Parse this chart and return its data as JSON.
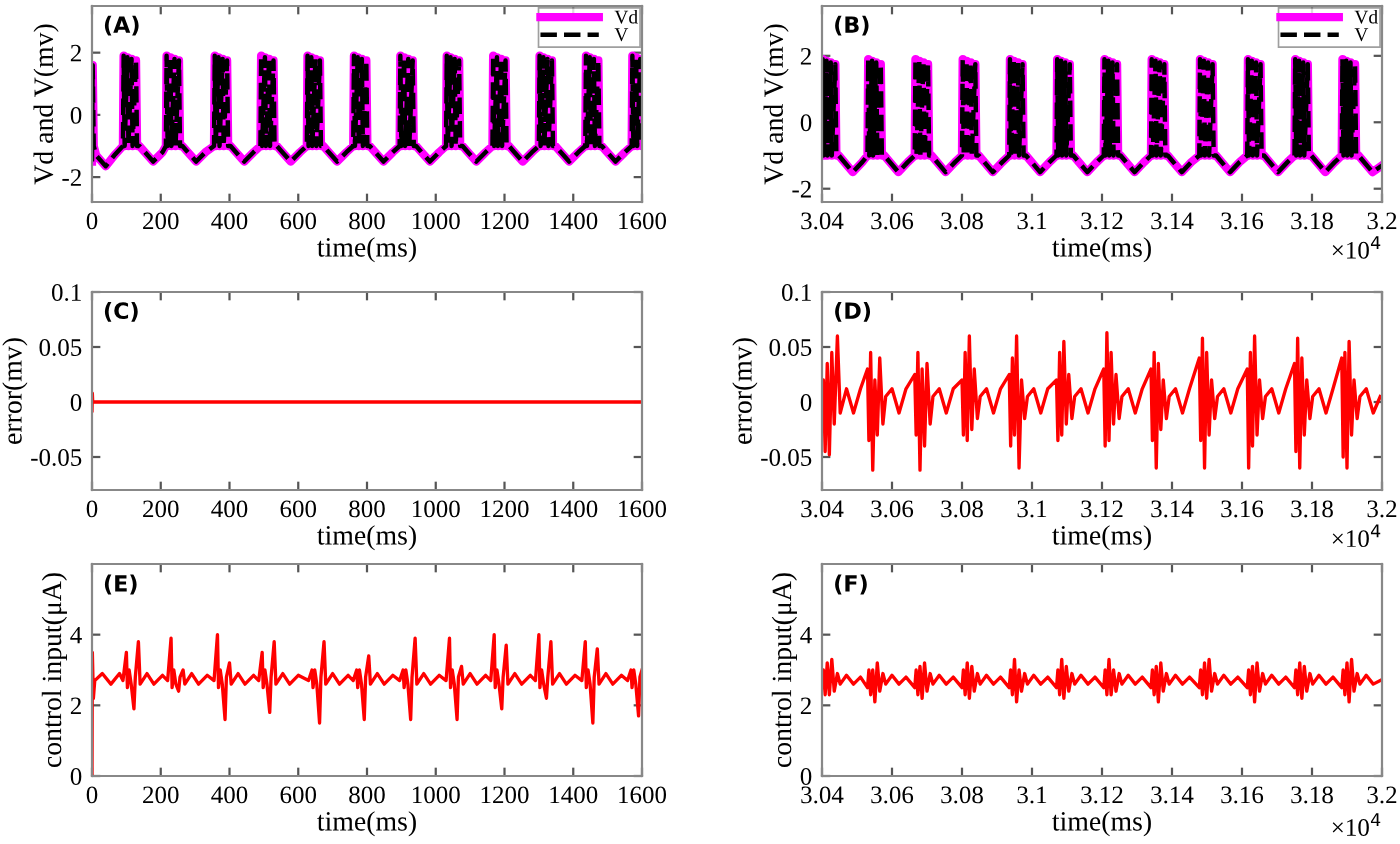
{
  "chart_data": [
    {
      "type": "line",
      "xlabel": "time(ms)",
      "ylabel": "Vd and V(mv)",
      "annotations": [
        "(A)"
      ],
      "legend": "top right",
      "xlim": [
        0,
        1600
      ],
      "xticks": [
        0,
        200,
        400,
        600,
        800,
        1000,
        1200,
        1400,
        1600
      ],
      "ylim": [
        -2.8,
        3.5
      ],
      "yticks": [
        -2,
        0,
        2
      ],
      "x": [
        0,
        2,
        5,
        12,
        40,
        65,
        90,
        92,
        95,
        103,
        106,
        115,
        118,
        128,
        131,
        138,
        150,
        178,
        205,
        215,
        217,
        220,
        228,
        231,
        240,
        243,
        253,
        256,
        263,
        275,
        303,
        330,
        355,
        357,
        360,
        368,
        371,
        380,
        383,
        393,
        396,
        403,
        415,
        443,
        470,
        490,
        492,
        495,
        503,
        506,
        515,
        518,
        528,
        531,
        538,
        550,
        578,
        605,
        625,
        627,
        630,
        638,
        641,
        650,
        653,
        663,
        666,
        673,
        685,
        713,
        740,
        760,
        762,
        765,
        773,
        776,
        785,
        788,
        798,
        801,
        808,
        820,
        848,
        875,
        895,
        897,
        900,
        908,
        911,
        920,
        923,
        933,
        936,
        943,
        955,
        983,
        1010,
        1030,
        1032,
        1035,
        1043,
        1046,
        1055,
        1058,
        1068,
        1071,
        1078,
        1090,
        1118,
        1145,
        1165,
        1167,
        1170,
        1178,
        1181,
        1190,
        1193,
        1203,
        1206,
        1213,
        1225,
        1253,
        1280,
        1300,
        1302,
        1305,
        1313,
        1316,
        1325,
        1328,
        1338,
        1341,
        1348,
        1360,
        1388,
        1415,
        1435,
        1437,
        1440,
        1448,
        1451,
        1460,
        1463,
        1473,
        1476,
        1483,
        1495,
        1523,
        1550,
        1570,
        1572,
        1575,
        1583,
        1586,
        1595,
        1598,
        1600
      ],
      "series": [
        {
          "name": "Vd",
          "color": "#ff00ff",
          "line_style": "solid",
          "values": [
            -1.5,
            1.6,
            -1.0,
            -1.3,
            -1.65,
            -1.3,
            -1.0,
            1.9,
            -1.0,
            1.85,
            -1.0,
            1.8,
            -1.0,
            1.75,
            -1.0,
            -1.0,
            -1.15,
            -1.5,
            -1.2,
            -1.0,
            1.9,
            -1.0,
            1.85,
            -1.0,
            1.8,
            -1.0,
            1.75,
            -1.0,
            -1.0,
            -1.15,
            -1.5,
            -1.2,
            -1.0,
            1.9,
            -1.0,
            1.85,
            -1.0,
            1.8,
            -1.0,
            1.75,
            -1.0,
            -1.0,
            -1.15,
            -1.5,
            -1.2,
            -1.0,
            1.9,
            -1.0,
            1.85,
            -1.0,
            1.8,
            -1.0,
            1.75,
            -1.0,
            -1.0,
            -1.15,
            -1.5,
            -1.2,
            -1.0,
            1.9,
            -1.0,
            1.85,
            -1.0,
            1.8,
            -1.0,
            1.75,
            -1.0,
            -1.0,
            -1.15,
            -1.5,
            -1.2,
            -1.0,
            1.9,
            -1.0,
            1.85,
            -1.0,
            1.8,
            -1.0,
            1.75,
            -1.0,
            -1.0,
            -1.15,
            -1.5,
            -1.2,
            -1.0,
            1.9,
            -1.0,
            1.85,
            -1.0,
            1.8,
            -1.0,
            1.75,
            -1.0,
            -1.0,
            -1.15,
            -1.5,
            -1.2,
            -1.0,
            1.9,
            -1.0,
            1.85,
            -1.0,
            1.8,
            -1.0,
            1.75,
            -1.0,
            -1.0,
            -1.15,
            -1.5,
            -1.2,
            -1.0,
            1.9,
            -1.0,
            1.85,
            -1.0,
            1.8,
            -1.0,
            1.75,
            -1.0,
            -1.0,
            -1.15,
            -1.5,
            -1.2,
            -1.0,
            1.9,
            -1.0,
            1.85,
            -1.0,
            1.8,
            -1.0,
            1.75,
            -1.0,
            -1.0,
            -1.15,
            -1.5,
            -1.2,
            -1.0,
            1.9,
            -1.0,
            1.85,
            -1.0,
            1.8,
            -1.0,
            1.75,
            -1.0,
            -1.0,
            -1.15,
            -1.5,
            -1.2,
            -1.0,
            1.9,
            -1.0,
            1.85,
            -1.0,
            1.8,
            -1.0,
            -1.0
          ]
        },
        {
          "name": "V",
          "color": "#000000",
          "line_style": "dashed",
          "values": [
            -1.5,
            1.6,
            -1.0,
            -1.3,
            -1.65,
            -1.3,
            -1.0,
            1.9,
            -1.0,
            1.85,
            -1.0,
            1.8,
            -1.0,
            1.75,
            -1.0,
            -1.0,
            -1.15,
            -1.5,
            -1.2,
            -1.0,
            1.9,
            -1.0,
            1.85,
            -1.0,
            1.8,
            -1.0,
            1.75,
            -1.0,
            -1.0,
            -1.15,
            -1.5,
            -1.2,
            -1.0,
            1.9,
            -1.0,
            1.85,
            -1.0,
            1.8,
            -1.0,
            1.75,
            -1.0,
            -1.0,
            -1.15,
            -1.5,
            -1.2,
            -1.0,
            1.9,
            -1.0,
            1.85,
            -1.0,
            1.8,
            -1.0,
            1.75,
            -1.0,
            -1.0,
            -1.15,
            -1.5,
            -1.2,
            -1.0,
            1.9,
            -1.0,
            1.85,
            -1.0,
            1.8,
            -1.0,
            1.75,
            -1.0,
            -1.0,
            -1.15,
            -1.5,
            -1.2,
            -1.0,
            1.9,
            -1.0,
            1.85,
            -1.0,
            1.8,
            -1.0,
            1.75,
            -1.0,
            -1.0,
            -1.15,
            -1.5,
            -1.2,
            -1.0,
            1.9,
            -1.0,
            1.85,
            -1.0,
            1.8,
            -1.0,
            1.75,
            -1.0,
            -1.0,
            -1.15,
            -1.5,
            -1.2,
            -1.0,
            1.9,
            -1.0,
            1.85,
            -1.0,
            1.8,
            -1.0,
            1.75,
            -1.0,
            -1.0,
            -1.15,
            -1.5,
            -1.2,
            -1.0,
            1.9,
            -1.0,
            1.85,
            -1.0,
            1.8,
            -1.0,
            1.75,
            -1.0,
            -1.0,
            -1.15,
            -1.5,
            -1.2,
            -1.0,
            1.9,
            -1.0,
            1.85,
            -1.0,
            1.8,
            -1.0,
            1.75,
            -1.0,
            -1.0,
            -1.15,
            -1.5,
            -1.2,
            -1.0,
            1.9,
            -1.0,
            1.85,
            -1.0,
            1.8,
            -1.0,
            1.75,
            -1.0,
            -1.0,
            -1.15,
            -1.5,
            -1.2,
            -1.0,
            1.9,
            -1.0,
            1.85,
            -1.0,
            1.8,
            -1.0,
            -1.0
          ]
        }
      ]
    },
    {
      "type": "line",
      "xlabel": "time(ms)",
      "ylabel": "Vd and V(mv)",
      "annotations": [
        "(B)",
        "×10$^{4}$"
      ],
      "legend": "top right",
      "xlim": [
        3.04,
        3.2
      ],
      "xticks": [
        3.04,
        3.06,
        3.08,
        3.1,
        3.12,
        3.14,
        3.16,
        3.18,
        3.2
      ],
      "ylim": [
        -2.4,
        3.5
      ],
      "yticks": [
        -2,
        0,
        2
      ],
      "x": [
        3.04,
        3.0402,
        3.0405,
        3.0413,
        3.0416,
        3.0425,
        3.0428,
        3.0438,
        3.0441,
        3.0448,
        3.046,
        3.0488,
        3.0515,
        3.053,
        3.0532,
        3.0535,
        3.0543,
        3.0546,
        3.0555,
        3.0558,
        3.0568,
        3.0571,
        3.0578,
        3.059,
        3.0618,
        3.0645,
        3.0665,
        3.0667,
        3.067,
        3.0678,
        3.0681,
        3.069,
        3.0693,
        3.0703,
        3.0706,
        3.0713,
        3.0725,
        3.0753,
        3.078,
        3.08,
        3.0802,
        3.0805,
        3.0813,
        3.0816,
        3.0825,
        3.0828,
        3.0838,
        3.0841,
        3.0848,
        3.086,
        3.0888,
        3.0915,
        3.0935,
        3.0937,
        3.094,
        3.0948,
        3.0951,
        3.096,
        3.0963,
        3.0973,
        3.0976,
        3.0983,
        3.0995,
        3.1023,
        3.105,
        3.107,
        3.1072,
        3.1075,
        3.1083,
        3.1086,
        3.1095,
        3.1098,
        3.1108,
        3.1111,
        3.1118,
        3.113,
        3.1158,
        3.1185,
        3.1205,
        3.1207,
        3.121,
        3.1218,
        3.1221,
        3.123,
        3.1233,
        3.1243,
        3.1246,
        3.1253,
        3.1265,
        3.1293,
        3.132,
        3.134,
        3.1342,
        3.1345,
        3.1353,
        3.1356,
        3.1365,
        3.1368,
        3.1378,
        3.1381,
        3.1388,
        3.14,
        3.1428,
        3.1455,
        3.1478,
        3.148,
        3.1483,
        3.1491,
        3.1494,
        3.1503,
        3.1506,
        3.1516,
        3.1519,
        3.1526,
        3.1538,
        3.1566,
        3.1593,
        3.1615,
        3.1617,
        3.162,
        3.1628,
        3.1631,
        3.164,
        3.1643,
        3.1653,
        3.1656,
        3.1663,
        3.1675,
        3.1703,
        3.173,
        3.175,
        3.1752,
        3.1755,
        3.1763,
        3.1766,
        3.1775,
        3.1778,
        3.1788,
        3.1791,
        3.1798,
        3.181,
        3.1838,
        3.1865,
        3.1885,
        3.1887,
        3.189,
        3.1898,
        3.1901,
        3.191,
        3.1913,
        3.1923,
        3.1926,
        3.1933,
        3.1945,
        3.1973,
        3.2
      ],
      "series": [
        {
          "name": "Vd",
          "color": "#ff00ff",
          "line_style": "solid",
          "values": [
            -1.0,
            1.9,
            -1.0,
            1.85,
            -1.0,
            1.8,
            -1.0,
            1.75,
            -1.0,
            -1.0,
            -1.15,
            -1.5,
            -1.2,
            -1.0,
            1.9,
            -1.0,
            1.85,
            -1.0,
            1.8,
            -1.0,
            1.75,
            -1.0,
            -1.0,
            -1.15,
            -1.5,
            -1.2,
            -1.0,
            1.9,
            -1.0,
            1.85,
            -1.0,
            1.8,
            -1.0,
            1.75,
            -1.0,
            -1.0,
            -1.15,
            -1.5,
            -1.2,
            -1.0,
            1.9,
            -1.0,
            1.85,
            -1.0,
            1.8,
            -1.0,
            1.75,
            -1.0,
            -1.0,
            -1.15,
            -1.5,
            -1.2,
            -1.0,
            1.9,
            -1.0,
            1.85,
            -1.0,
            1.8,
            -1.0,
            1.75,
            -1.0,
            -1.0,
            -1.15,
            -1.5,
            -1.2,
            -1.0,
            1.9,
            -1.0,
            1.85,
            -1.0,
            1.8,
            -1.0,
            1.75,
            -1.0,
            -1.0,
            -1.15,
            -1.5,
            -1.2,
            -1.0,
            1.9,
            -1.0,
            1.85,
            -1.0,
            1.8,
            -1.0,
            1.75,
            -1.0,
            -1.0,
            -1.15,
            -1.5,
            -1.2,
            -1.0,
            1.9,
            -1.0,
            1.85,
            -1.0,
            1.8,
            -1.0,
            1.75,
            -1.0,
            -1.0,
            -1.15,
            -1.5,
            -1.2,
            -1.0,
            1.9,
            -1.0,
            1.85,
            -1.0,
            1.8,
            -1.0,
            1.75,
            -1.0,
            -1.0,
            -1.15,
            -1.5,
            -1.2,
            -1.0,
            1.9,
            -1.0,
            1.85,
            -1.0,
            1.8,
            -1.0,
            1.75,
            -1.0,
            -1.0,
            -1.15,
            -1.5,
            -1.2,
            -1.0,
            1.9,
            -1.0,
            1.85,
            -1.0,
            1.8,
            -1.0,
            1.75,
            -1.0,
            -1.0,
            -1.15,
            -1.5,
            -1.2,
            -1.0,
            1.9,
            -1.0,
            1.85,
            -1.0,
            1.8,
            -1.0,
            1.75,
            -1.0,
            -1.0,
            -1.15,
            -1.5,
            -1.3
          ]
        },
        {
          "name": "V",
          "color": "#000000",
          "line_style": "dashed",
          "values": [
            -1.0,
            1.9,
            -1.0,
            1.85,
            -1.0,
            1.8,
            -1.0,
            1.75,
            -1.0,
            -1.0,
            -1.15,
            -1.5,
            -1.2,
            -1.0,
            1.9,
            -1.0,
            1.85,
            -1.0,
            1.8,
            -1.0,
            1.75,
            -1.0,
            -1.0,
            -1.15,
            -1.5,
            -1.2,
            -1.0,
            1.9,
            -1.0,
            1.85,
            -1.0,
            1.8,
            -1.0,
            1.75,
            -1.0,
            -1.0,
            -1.15,
            -1.5,
            -1.2,
            -1.0,
            1.9,
            -1.0,
            1.85,
            -1.0,
            1.8,
            -1.0,
            1.75,
            -1.0,
            -1.0,
            -1.15,
            -1.5,
            -1.2,
            -1.0,
            1.9,
            -1.0,
            1.85,
            -1.0,
            1.8,
            -1.0,
            1.75,
            -1.0,
            -1.0,
            -1.15,
            -1.5,
            -1.2,
            -1.0,
            1.9,
            -1.0,
            1.85,
            -1.0,
            1.8,
            -1.0,
            1.75,
            -1.0,
            -1.0,
            -1.15,
            -1.5,
            -1.2,
            -1.0,
            1.9,
            -1.0,
            1.85,
            -1.0,
            1.8,
            -1.0,
            1.75,
            -1.0,
            -1.0,
            -1.15,
            -1.5,
            -1.2,
            -1.0,
            1.9,
            -1.0,
            1.85,
            -1.0,
            1.8,
            -1.0,
            1.75,
            -1.0,
            -1.0,
            -1.15,
            -1.5,
            -1.2,
            -1.0,
            1.9,
            -1.0,
            1.85,
            -1.0,
            1.8,
            -1.0,
            1.75,
            -1.0,
            -1.0,
            -1.15,
            -1.5,
            -1.2,
            -1.0,
            1.9,
            -1.0,
            1.85,
            -1.0,
            1.8,
            -1.0,
            1.75,
            -1.0,
            -1.0,
            -1.15,
            -1.5,
            -1.2,
            -1.0,
            1.9,
            -1.0,
            1.85,
            -1.0,
            1.8,
            -1.0,
            1.75,
            -1.0,
            -1.0,
            -1.15,
            -1.5,
            -1.2,
            -1.0,
            1.9,
            -1.0,
            1.85,
            -1.0,
            1.8,
            -1.0,
            1.75,
            -1.0,
            -1.0,
            -1.15,
            -1.5,
            -1.3
          ]
        }
      ]
    },
    {
      "type": "line",
      "xlabel": "time(ms)",
      "ylabel": "error(mv)",
      "annotations": [
        "(C)"
      ],
      "xlim": [
        0,
        1600
      ],
      "xticks": [
        0,
        200,
        400,
        600,
        800,
        1000,
        1200,
        1400,
        1600
      ],
      "ylim": [
        -0.08,
        0.1
      ],
      "yticks": [
        -0.05,
        0,
        0.05,
        0.1
      ],
      "x": [
        0,
        1,
        2,
        1600
      ],
      "series": [
        {
          "color": "#ff0000",
          "line_style": "solid",
          "values": [
            -0.008,
            0.008,
            0,
            0
          ]
        }
      ]
    },
    {
      "type": "line",
      "xlabel": "time(ms)",
      "ylabel": "error(mv)",
      "annotations": [
        "(D)",
        "×10$^{4}$"
      ],
      "xlim": [
        3.04,
        3.2
      ],
      "xticks": [
        3.04,
        3.06,
        3.08,
        3.1,
        3.12,
        3.14,
        3.16,
        3.18,
        3.2
      ],
      "ylim": [
        -0.08,
        0.1
      ],
      "yticks": [
        -0.05,
        0,
        0.05,
        0.1
      ],
      "x": [
        3.04,
        3.0404,
        3.0409,
        3.0415,
        3.0421,
        3.0428,
        3.0435,
        3.0444,
        3.0452,
        3.047,
        3.049,
        3.051,
        3.053,
        3.0534,
        3.0539,
        3.0545,
        3.0551,
        3.0558,
        3.0565,
        3.0574,
        3.0582,
        3.06,
        3.062,
        3.064,
        3.0665,
        3.0669,
        3.0674,
        3.068,
        3.0686,
        3.0693,
        3.07,
        3.0709,
        3.0717,
        3.0735,
        3.0755,
        3.0775,
        3.08,
        3.0804,
        3.0809,
        3.0815,
        3.0821,
        3.0828,
        3.0835,
        3.0844,
        3.0852,
        3.087,
        3.089,
        3.091,
        3.0935,
        3.0939,
        3.0944,
        3.095,
        3.0956,
        3.0963,
        3.097,
        3.0979,
        3.0987,
        3.1005,
        3.1025,
        3.1045,
        3.107,
        3.1074,
        3.1079,
        3.1085,
        3.1091,
        3.1098,
        3.1105,
        3.1114,
        3.1122,
        3.114,
        3.116,
        3.118,
        3.1205,
        3.1209,
        3.1214,
        3.122,
        3.1226,
        3.1233,
        3.124,
        3.1249,
        3.1257,
        3.1275,
        3.1295,
        3.1315,
        3.134,
        3.1344,
        3.1349,
        3.1355,
        3.1361,
        3.1368,
        3.1375,
        3.1384,
        3.1392,
        3.141,
        3.143,
        3.145,
        3.1478,
        3.1482,
        3.1487,
        3.1493,
        3.1499,
        3.1506,
        3.1513,
        3.1522,
        3.153,
        3.1548,
        3.1568,
        3.1588,
        3.1615,
        3.1619,
        3.1624,
        3.163,
        3.1636,
        3.1643,
        3.165,
        3.1659,
        3.1667,
        3.1685,
        3.1705,
        3.1725,
        3.175,
        3.1754,
        3.1759,
        3.1765,
        3.1771,
        3.1778,
        3.1785,
        3.1794,
        3.1802,
        3.182,
        3.184,
        3.186,
        3.1885,
        3.1889,
        3.1894,
        3.19,
        3.1906,
        3.1913,
        3.192,
        3.1929,
        3.1937,
        3.1955,
        3.1975,
        3.1995
      ],
      "series": [
        {
          "color": "#ff0000",
          "line_style": "solid",
          "values": [
            -0.02,
            0.02,
            -0.045,
            0.035,
            -0.048,
            0.045,
            -0.02,
            0.06,
            -0.01,
            0.012,
            -0.01,
            0.012,
            0.03,
            -0.035,
            0.045,
            -0.062,
            0.02,
            -0.03,
            0.04,
            -0.02,
            0.005,
            0.012,
            -0.01,
            0.012,
            0.025,
            -0.03,
            0.045,
            -0.062,
            0.03,
            -0.04,
            0.035,
            -0.02,
            0.005,
            0.012,
            -0.01,
            0.012,
            0.02,
            -0.03,
            0.045,
            -0.035,
            0.06,
            -0.025,
            0.03,
            -0.015,
            0.005,
            0.012,
            -0.01,
            0.012,
            0.025,
            -0.04,
            0.04,
            -0.03,
            0.06,
            -0.06,
            0.02,
            -0.015,
            0.005,
            0.012,
            -0.01,
            0.012,
            0.02,
            -0.035,
            0.045,
            -0.03,
            0.055,
            -0.02,
            0.025,
            -0.015,
            0.005,
            0.012,
            -0.01,
            0.012,
            0.03,
            -0.04,
            0.063,
            -0.035,
            0.045,
            -0.02,
            0.025,
            -0.015,
            0.005,
            0.012,
            -0.01,
            0.012,
            0.03,
            -0.035,
            0.045,
            -0.06,
            0.035,
            -0.025,
            0.02,
            -0.015,
            0.005,
            0.012,
            -0.01,
            0.012,
            0.04,
            -0.035,
            0.058,
            -0.06,
            0.045,
            -0.03,
            0.02,
            -0.015,
            0.005,
            0.012,
            -0.01,
            0.012,
            0.03,
            -0.06,
            0.045,
            -0.04,
            0.06,
            -0.03,
            0.02,
            -0.015,
            0.005,
            0.012,
            -0.01,
            0.012,
            0.035,
            -0.045,
            0.058,
            -0.06,
            0.04,
            -0.03,
            0.02,
            -0.015,
            0.005,
            0.012,
            -0.01,
            0.012,
            0.04,
            -0.05,
            0.045,
            -0.06,
            0.055,
            -0.03,
            0.02,
            -0.015,
            0.005,
            0.012,
            -0.01,
            0.005
          ]
        }
      ]
    },
    {
      "type": "line",
      "xlabel": "time(ms)",
      "ylabel": "control input(μA)",
      "annotations": [
        "(E)"
      ],
      "xlim": [
        0,
        1600
      ],
      "xticks": [
        0,
        200,
        400,
        600,
        800,
        1000,
        1200,
        1400,
        1600
      ],
      "ylim": [
        0,
        6
      ],
      "yticks": [
        0,
        2,
        4
      ],
      "x": [
        0,
        1,
        4,
        8,
        30,
        55,
        80,
        90,
        100,
        103,
        108,
        114,
        122,
        126,
        135,
        140,
        160,
        180,
        205,
        220,
        230,
        233,
        238,
        244,
        252,
        256,
        265,
        270,
        290,
        310,
        335,
        355,
        365,
        368,
        373,
        379,
        387,
        391,
        400,
        405,
        425,
        445,
        470,
        485,
        495,
        498,
        503,
        509,
        517,
        521,
        530,
        535,
        555,
        575,
        600,
        630,
        640,
        643,
        648,
        654,
        662,
        666,
        675,
        680,
        700,
        720,
        745,
        760,
        770,
        773,
        778,
        784,
        792,
        796,
        805,
        810,
        830,
        850,
        875,
        895,
        905,
        908,
        913,
        919,
        927,
        931,
        940,
        945,
        965,
        985,
        1010,
        1030,
        1040,
        1043,
        1048,
        1054,
        1062,
        1066,
        1075,
        1080,
        1100,
        1120,
        1145,
        1160,
        1170,
        1173,
        1178,
        1184,
        1192,
        1196,
        1205,
        1210,
        1230,
        1250,
        1275,
        1290,
        1300,
        1303,
        1308,
        1314,
        1322,
        1326,
        1335,
        1340,
        1360,
        1380,
        1405,
        1425,
        1435,
        1438,
        1443,
        1449,
        1457,
        1461,
        1470,
        1475,
        1495,
        1515,
        1540,
        1558,
        1568,
        1571,
        1576,
        1582,
        1590,
        1594,
        1600
      ],
      "series": [
        {
          "color": "#ff0000",
          "line_style": "solid",
          "values": [
            0,
            3.5,
            2.2,
            2.7,
            2.9,
            2.6,
            2.9,
            2.7,
            3.5,
            2.5,
            3.0,
            2.6,
            1.9,
            2.8,
            3.8,
            2.6,
            2.9,
            2.6,
            2.85,
            2.7,
            3.9,
            2.5,
            3.0,
            2.6,
            2.4,
            2.8,
            3.0,
            2.6,
            2.9,
            2.6,
            2.85,
            2.7,
            4.0,
            2.5,
            3.0,
            2.6,
            1.6,
            2.8,
            3.2,
            2.6,
            2.9,
            2.6,
            2.85,
            2.7,
            3.5,
            2.5,
            3.0,
            2.6,
            1.8,
            2.8,
            3.8,
            2.6,
            2.9,
            2.6,
            2.85,
            2.7,
            3.0,
            2.5,
            3.0,
            2.6,
            1.5,
            2.8,
            3.8,
            2.6,
            2.9,
            2.6,
            2.85,
            2.7,
            3.0,
            2.5,
            3.0,
            2.6,
            1.6,
            2.8,
            3.4,
            2.6,
            2.9,
            2.6,
            2.85,
            2.7,
            3.0,
            2.5,
            3.0,
            2.6,
            1.6,
            2.8,
            3.9,
            2.6,
            2.9,
            2.6,
            2.85,
            2.7,
            3.9,
            2.5,
            3.0,
            2.6,
            1.6,
            2.8,
            3.1,
            2.6,
            2.9,
            2.6,
            2.85,
            2.7,
            4.0,
            2.5,
            3.0,
            2.6,
            1.9,
            2.8,
            3.7,
            2.6,
            2.9,
            2.6,
            2.85,
            2.7,
            4.0,
            2.5,
            3.0,
            2.6,
            2.2,
            2.8,
            3.8,
            2.6,
            2.9,
            2.6,
            2.85,
            2.7,
            3.8,
            2.5,
            3.0,
            2.6,
            1.5,
            2.8,
            3.6,
            2.6,
            2.9,
            2.6,
            2.85,
            2.7,
            3.0,
            2.5,
            3.0,
            2.6,
            1.7,
            2.8,
            3.0
          ]
        }
      ]
    },
    {
      "type": "line",
      "xlabel": "time(ms)",
      "ylabel": "control input(μA)",
      "annotations": [
        "(F)",
        "×10$^{4}$"
      ],
      "xlim": [
        3.04,
        3.2
      ],
      "xticks": [
        3.04,
        3.06,
        3.08,
        3.1,
        3.12,
        3.14,
        3.16,
        3.18,
        3.2
      ],
      "ylim": [
        0,
        6
      ],
      "yticks": [
        0,
        2,
        4
      ],
      "x": [
        3.04,
        3.0404,
        3.0409,
        3.0415,
        3.0421,
        3.0428,
        3.0435,
        3.0444,
        3.0452,
        3.047,
        3.049,
        3.051,
        3.053,
        3.0534,
        3.0539,
        3.0545,
        3.0551,
        3.0558,
        3.0565,
        3.0574,
        3.0582,
        3.06,
        3.062,
        3.064,
        3.0665,
        3.0669,
        3.0674,
        3.068,
        3.0686,
        3.0693,
        3.07,
        3.0709,
        3.0717,
        3.0735,
        3.0755,
        3.0775,
        3.08,
        3.0804,
        3.0809,
        3.0815,
        3.0821,
        3.0828,
        3.0835,
        3.0844,
        3.0852,
        3.087,
        3.089,
        3.091,
        3.0935,
        3.0939,
        3.0944,
        3.095,
        3.0956,
        3.0963,
        3.097,
        3.0979,
        3.0987,
        3.1005,
        3.1025,
        3.1045,
        3.107,
        3.1074,
        3.1079,
        3.1085,
        3.1091,
        3.1098,
        3.1105,
        3.1114,
        3.1122,
        3.114,
        3.116,
        3.118,
        3.1205,
        3.1209,
        3.1214,
        3.122,
        3.1226,
        3.1233,
        3.124,
        3.1249,
        3.1257,
        3.1275,
        3.1295,
        3.1315,
        3.134,
        3.1344,
        3.1349,
        3.1355,
        3.1361,
        3.1368,
        3.1375,
        3.1384,
        3.1392,
        3.141,
        3.143,
        3.145,
        3.1478,
        3.1482,
        3.1487,
        3.1493,
        3.1499,
        3.1506,
        3.1513,
        3.1522,
        3.153,
        3.1548,
        3.1568,
        3.1588,
        3.1615,
        3.1619,
        3.1624,
        3.163,
        3.1636,
        3.1643,
        3.165,
        3.1659,
        3.1667,
        3.1685,
        3.1705,
        3.1725,
        3.175,
        3.1754,
        3.1759,
        3.1765,
        3.1771,
        3.1778,
        3.1785,
        3.1794,
        3.1802,
        3.182,
        3.184,
        3.186,
        3.1885,
        3.1889,
        3.1894,
        3.19,
        3.1906,
        3.1913,
        3.192,
        3.1929,
        3.1937,
        3.1955,
        3.1975,
        3.1995
      ],
      "series": [
        {
          "color": "#ff0000",
          "line_style": "solid",
          "values": [
            2.5,
            3.0,
            2.3,
            3.2,
            2.3,
            3.3,
            2.4,
            2.9,
            2.6,
            2.85,
            2.6,
            2.8,
            2.5,
            3.0,
            2.3,
            3.0,
            2.1,
            3.2,
            2.4,
            2.9,
            2.6,
            2.85,
            2.6,
            2.8,
            2.5,
            3.0,
            2.3,
            3.1,
            2.2,
            3.2,
            2.4,
            2.9,
            2.6,
            2.85,
            2.6,
            2.8,
            2.5,
            3.0,
            2.3,
            3.2,
            2.2,
            3.1,
            2.4,
            2.9,
            2.6,
            2.85,
            2.6,
            2.8,
            2.5,
            3.0,
            2.3,
            3.3,
            2.1,
            3.0,
            2.4,
            2.9,
            2.6,
            2.85,
            2.6,
            2.8,
            2.5,
            3.0,
            2.3,
            3.3,
            2.2,
            3.1,
            2.4,
            2.9,
            2.6,
            2.85,
            2.6,
            2.8,
            2.5,
            3.0,
            2.3,
            3.3,
            2.3,
            3.0,
            2.4,
            2.9,
            2.6,
            2.85,
            2.6,
            2.8,
            2.5,
            3.0,
            2.3,
            3.1,
            2.1,
            3.2,
            2.4,
            2.9,
            2.6,
            2.85,
            2.6,
            2.8,
            2.5,
            3.0,
            2.3,
            3.2,
            2.2,
            3.3,
            2.4,
            2.9,
            2.6,
            2.85,
            2.6,
            2.8,
            2.5,
            3.0,
            2.3,
            3.1,
            2.1,
            3.2,
            2.4,
            2.9,
            2.6,
            2.85,
            2.6,
            2.8,
            2.5,
            3.0,
            2.3,
            3.2,
            2.2,
            3.1,
            2.4,
            2.9,
            2.6,
            2.85,
            2.6,
            2.8,
            2.5,
            3.0,
            2.3,
            3.2,
            2.1,
            3.3,
            2.4,
            2.9,
            2.6,
            2.85,
            2.6,
            2.7
          ]
        }
      ]
    }
  ]
}
